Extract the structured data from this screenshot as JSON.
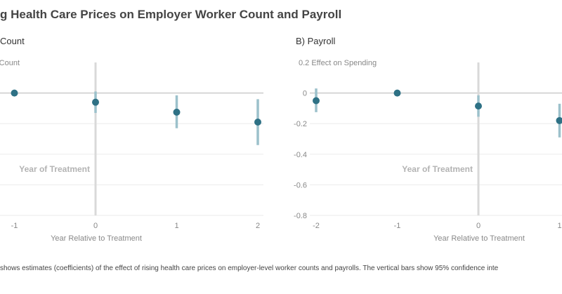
{
  "title": "g Health Care Prices on Employer Worker Count and Payroll",
  "note": "shows estimates (coefficients) of the effect of rising health care prices on employer-level worker counts and payrolls. The vertical bars show 95% confidence inte",
  "colors": {
    "point": "#2e7185",
    "ci": "#9cc1cb",
    "treatment_line": "#d9d9d9",
    "zero_line": "#b5b5b5",
    "grid": "#ebebeb",
    "annotation": "#b3b3b3",
    "axis_text": "#888888"
  },
  "chart_data": [
    {
      "type": "scatter",
      "panel_title": "Count",
      "ylabel": "Count",
      "xlabel": "Year Relative to Treatment",
      "annotation": "Year of Treatment",
      "xlim": [
        -1.95,
        2.05
      ],
      "ylim": [
        -0.8,
        0.2
      ],
      "x_ticks": [
        -1,
        0,
        1,
        2
      ],
      "y_ticks": [
        0,
        -0.2,
        -0.4,
        -0.6,
        -0.8
      ],
      "y_tick_labels_visible": false,
      "treatment_x": 0,
      "grid": true,
      "points": [
        {
          "x": -1,
          "y": 0,
          "ci": null
        },
        {
          "x": 0,
          "y": -0.06,
          "ci": [
            -0.13,
            0.01
          ]
        },
        {
          "x": 1,
          "y": -0.125,
          "ci": [
            -0.23,
            -0.015
          ]
        },
        {
          "x": 2,
          "y": -0.19,
          "ci": [
            -0.34,
            -0.04
          ]
        }
      ]
    },
    {
      "type": "scatter",
      "panel_title": "B) Payroll",
      "ylabel": "Effect on Spending",
      "xlabel": "Year Relative to Treatment",
      "annotation": "Year of Treatment",
      "xlim": [
        -2.1,
        1.05
      ],
      "ylim": [
        -0.8,
        0.2
      ],
      "x_ticks": [
        -2,
        -1,
        0,
        1
      ],
      "y_ticks": [
        0.2,
        0,
        -0.2,
        -0.4,
        -0.6,
        -0.8
      ],
      "y_tick_labels": [
        "0.2",
        "0",
        "-0.2",
        "-0.4",
        "-0.6",
        "-0.8"
      ],
      "y_tick_labels_visible": true,
      "treatment_x": 0,
      "grid": true,
      "points": [
        {
          "x": -2,
          "y": -0.05,
          "ci": [
            -0.125,
            0.03
          ]
        },
        {
          "x": -1,
          "y": 0,
          "ci": null
        },
        {
          "x": 0,
          "y": -0.085,
          "ci": [
            -0.155,
            -0.015
          ]
        },
        {
          "x": 1,
          "y": -0.18,
          "ci": [
            -0.29,
            -0.07
          ]
        }
      ]
    }
  ]
}
